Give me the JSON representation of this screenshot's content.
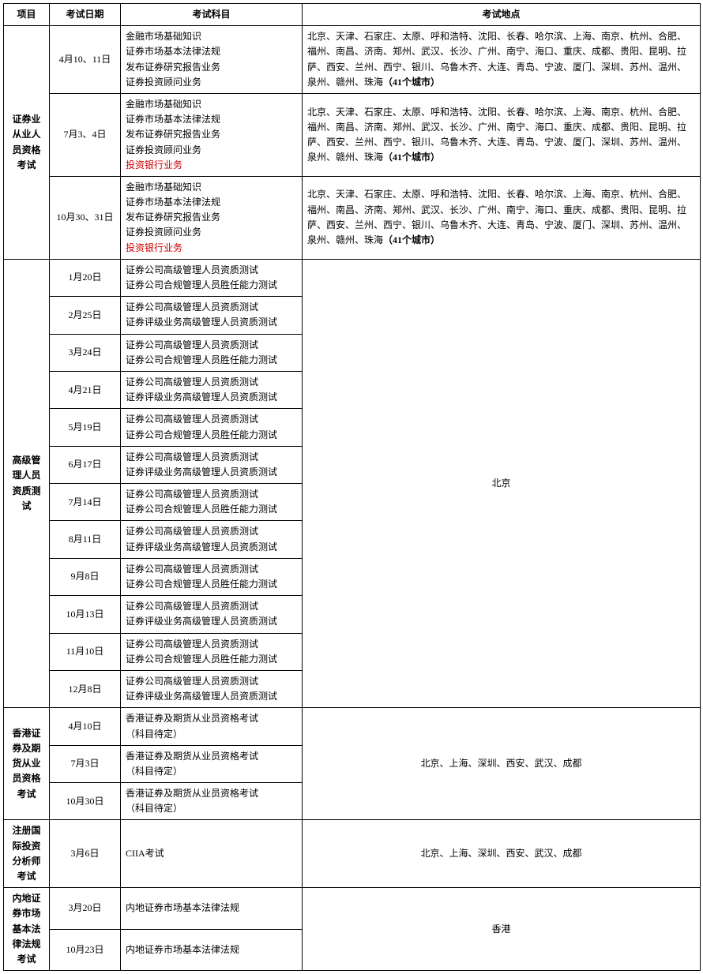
{
  "headers": {
    "project": "项目",
    "date": "考试日期",
    "subject": "考试科目",
    "location": "考试地点"
  },
  "section1": {
    "name": "证券业从业人员资格考试",
    "rows": [
      {
        "date": "4月10、11日",
        "subjects": [
          "金融市场基础知识",
          "证券市场基本法律法规",
          "发布证券研究报告业务",
          "证券投资顾问业务"
        ],
        "loc_prefix": "北京、天津、石家庄、太原、呼和浩特、沈阳、长春、哈尔滨、上海、南京、杭州、合肥、福州、南昌、济南、郑州、武汉、长沙、广州、南宁、海口、重庆、成都、贵阳、昆明、拉萨、西安、兰州、西宁、银川、乌鲁木齐、大连、青岛、宁波、厦门、深圳、苏州、温州、泉州、赣州、珠海",
        "loc_bold": "（41个城市）"
      },
      {
        "date": "7月3、4日",
        "subjects": [
          "金融市场基础知识",
          "证券市场基本法律法规",
          "发布证券研究报告业务",
          "证券投资顾问业务"
        ],
        "subject_red": "投资银行业务",
        "loc_prefix": "北京、天津、石家庄、太原、呼和浩特、沈阳、长春、哈尔滨、上海、南京、杭州、合肥、福州、南昌、济南、郑州、武汉、长沙、广州、南宁、海口、重庆、成都、贵阳、昆明、拉萨、西安、兰州、西宁、银川、乌鲁木齐、大连、青岛、宁波、厦门、深圳、苏州、温州、泉州、赣州、珠海",
        "loc_bold": "（41个城市）"
      },
      {
        "date": "10月30、31日",
        "subjects": [
          "金融市场基础知识",
          "证券市场基本法律法规",
          "发布证券研究报告业务",
          "证券投资顾问业务"
        ],
        "subject_red": "投资银行业务",
        "loc_prefix": "北京、天津、石家庄、太原、呼和浩特、沈阳、长春、哈尔滨、上海、南京、杭州、合肥、福州、南昌、济南、郑州、武汉、长沙、广州、南宁、海口、重庆、成都、贵阳、昆明、拉萨、西安、兰州、西宁、银川、乌鲁木齐、大连、青岛、宁波、厦门、深圳、苏州、温州、泉州、赣州、珠海",
        "loc_bold": "（41个城市）"
      }
    ]
  },
  "section2": {
    "name": "高级管理人员资质测试",
    "location": "北京",
    "rows": [
      {
        "date": "1月20日",
        "subjects": [
          "证券公司高级管理人员资质测试",
          "证券公司合规管理人员胜任能力测试"
        ]
      },
      {
        "date": "2月25日",
        "subjects": [
          "证券公司高级管理人员资质测试",
          "证券评级业务高级管理人员资质测试"
        ]
      },
      {
        "date": "3月24日",
        "subjects": [
          "证券公司高级管理人员资质测试",
          "证券公司合规管理人员胜任能力测试"
        ]
      },
      {
        "date": "4月21日",
        "subjects": [
          "证券公司高级管理人员资质测试",
          "证券评级业务高级管理人员资质测试"
        ]
      },
      {
        "date": "5月19日",
        "subjects": [
          "证券公司高级管理人员资质测试",
          "证券公司合规管理人员胜任能力测试"
        ]
      },
      {
        "date": "6月17日",
        "subjects": [
          "证券公司高级管理人员资质测试",
          "证券评级业务高级管理人员资质测试"
        ]
      },
      {
        "date": "7月14日",
        "subjects": [
          "证券公司高级管理人员资质测试",
          "证券公司合规管理人员胜任能力测试"
        ]
      },
      {
        "date": "8月11日",
        "subjects": [
          "证券公司高级管理人员资质测试",
          "证券评级业务高级管理人员资质测试"
        ]
      },
      {
        "date": "9月8日",
        "subjects": [
          "证券公司高级管理人员资质测试",
          "证券公司合规管理人员胜任能力测试"
        ]
      },
      {
        "date": "10月13日",
        "subjects": [
          "证券公司高级管理人员资质测试",
          "证券评级业务高级管理人员资质测试"
        ]
      },
      {
        "date": "11月10日",
        "subjects": [
          "证券公司高级管理人员资质测试",
          "证券公司合规管理人员胜任能力测试"
        ]
      },
      {
        "date": "12月8日",
        "subjects": [
          "证券公司高级管理人员资质测试",
          "证券评级业务高级管理人员资质测试"
        ]
      }
    ]
  },
  "section3": {
    "name": "香港证券及期货从业员资格考试",
    "location": "北京、上海、深圳、西安、武汉、成都",
    "rows": [
      {
        "date": "4月10日",
        "subjects": [
          "香港证券及期货从业员资格考试",
          "（科目待定）"
        ]
      },
      {
        "date": "7月3日",
        "subjects": [
          "香港证券及期货从业员资格考试",
          "（科目待定）"
        ]
      },
      {
        "date": "10月30日",
        "subjects": [
          "香港证券及期货从业员资格考试",
          "（科目待定）"
        ]
      }
    ]
  },
  "section4": {
    "name": "注册国际投资分析师考试",
    "location": "北京、上海、深圳、西安、武汉、成都",
    "rows": [
      {
        "date": "3月6日",
        "subjects": [
          "CIIA考试"
        ]
      }
    ]
  },
  "section5": {
    "name": "内地证券市场基本法律法规考试",
    "location": "香港",
    "rows": [
      {
        "date": "3月20日",
        "subjects": [
          "内地证券市场基本法律法规"
        ]
      },
      {
        "date": "10月23日",
        "subjects": [
          "内地证券市场基本法律法规"
        ]
      }
    ]
  }
}
